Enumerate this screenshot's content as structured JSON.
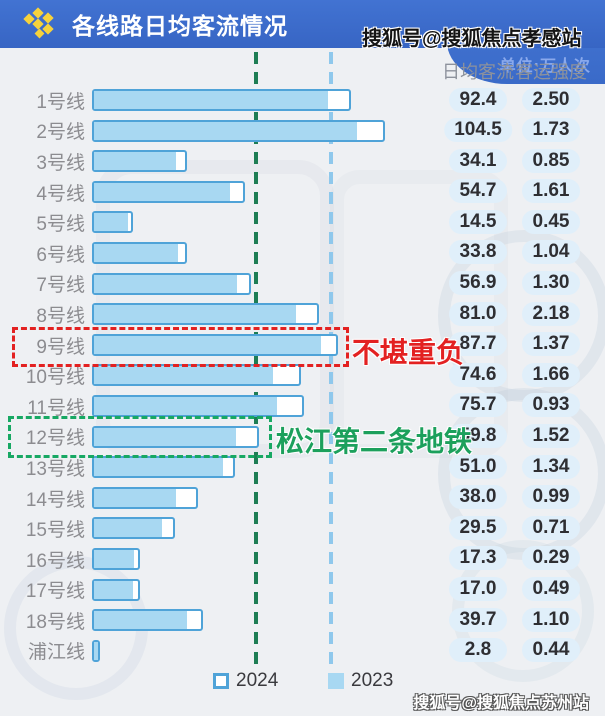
{
  "header": {
    "title": "各线路日均客流情况",
    "unit_label": "单位:万人次",
    "logo_icon": "yellow-diamond-cluster-icon"
  },
  "watermarks": {
    "top": "搜狐号@搜狐焦点孝感站",
    "bottom": "搜狐号@搜狐焦点苏州站"
  },
  "table": {
    "columns": [
      "日均客流",
      "客运强度"
    ]
  },
  "annotations": {
    "line9": {
      "target_row": "9号线",
      "text": "不堪重负",
      "color": "#e32121",
      "box_style": "red-dashed"
    },
    "line12": {
      "target_row": "12号线",
      "text": "松江第二条地铁",
      "color": "#1ca05c",
      "box_style": "green-dashed"
    }
  },
  "colors": {
    "header_blue": "#3d6ecb",
    "bar_border": "#4fa3d8",
    "bar_fill_2023": "#a8d8f2",
    "bar_fill_2024": "#ffffff",
    "value_pill_bg": "#e0effa",
    "annotation_red": "#e32121",
    "annotation_green": "#1ca05c",
    "refline_green": "#1e7d54",
    "refline_blue": "#8fc8ec",
    "label_gray": "#8c8c90"
  },
  "chart_data": {
    "type": "bar",
    "orientation": "horizontal",
    "title": "各线路日均客流情况",
    "unit": "万人次",
    "legend_position": "bottom",
    "grid": false,
    "xlim": [
      0,
      110
    ],
    "categories": [
      "1号线",
      "2号线",
      "3号线",
      "4号线",
      "5号线",
      "6号线",
      "7号线",
      "8号线",
      "9号线",
      "10号线",
      "11号线",
      "12号线",
      "13号线",
      "14号线",
      "15号线",
      "16号线",
      "17号线",
      "18号线",
      "浦江线"
    ],
    "series": [
      {
        "name": "2024",
        "swatch": "outlined",
        "values": [
          92.4,
          104.5,
          34.1,
          54.7,
          14.5,
          33.8,
          56.9,
          81.0,
          87.7,
          74.6,
          75.7,
          59.8,
          51.0,
          38.0,
          29.5,
          17.3,
          17.0,
          39.7,
          2.8
        ]
      },
      {
        "name": "2023",
        "swatch": "filled",
        "values": [
          84.8,
          95.3,
          30.6,
          50.0,
          13.5,
          31.5,
          52.5,
          73.4,
          82.3,
          65.0,
          66.7,
          52.1,
          47.4,
          30.6,
          25.6,
          15.4,
          15.1,
          34.4,
          2.6
        ]
      }
    ],
    "value_labels": {
      "flow": [
        "92.4",
        "104.5",
        "34.1",
        "54.7",
        "14.5",
        "33.8",
        "56.9",
        "81.0",
        "87.7",
        "74.6",
        "75.7",
        "59.8",
        "51.0",
        "38.0",
        "29.5",
        "17.3",
        "17.0",
        "39.7",
        "2.8"
      ],
      "intensity": [
        "2.50",
        "1.73",
        "0.85",
        "1.61",
        "0.45",
        "1.04",
        "1.30",
        "2.18",
        "1.37",
        "1.66",
        "0.93",
        "1.52",
        "1.34",
        "0.99",
        "0.71",
        "0.29",
        "0.49",
        "1.10",
        "0.44"
      ]
    },
    "reference_lines": [
      {
        "x": 59.3,
        "style": "dashed",
        "color": "#1e7d54",
        "aligned_with": "12号线 2024 bar end"
      },
      {
        "x": 86.0,
        "style": "dashed",
        "color": "#8fc8ec",
        "aligned_with": "9号线 2024 bar end"
      }
    ]
  }
}
